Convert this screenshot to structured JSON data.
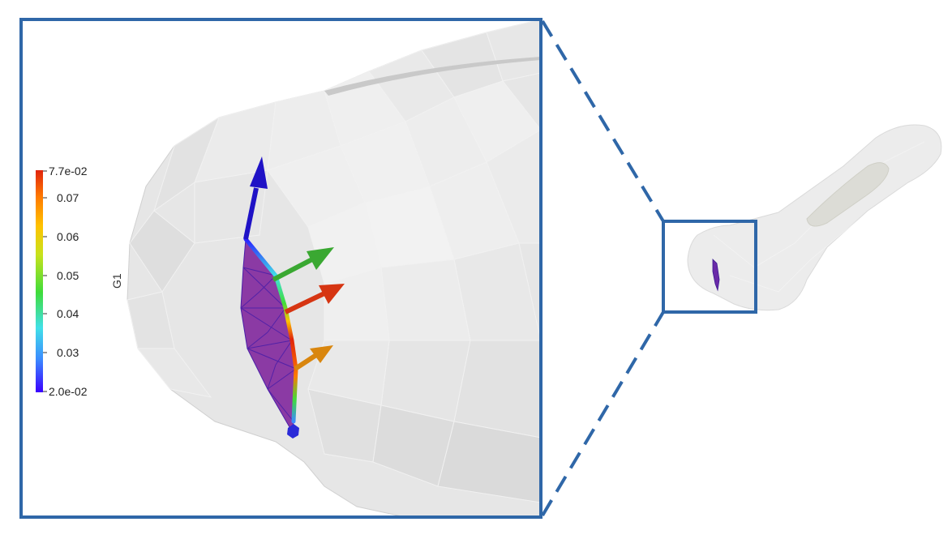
{
  "colorbar": {
    "title": "G1",
    "labels": [
      "7.7e-02",
      "0.07",
      "0.06",
      "0.05",
      "0.04",
      "0.03",
      "2.0e-02"
    ],
    "min": 0.02,
    "max": 0.077,
    "gradient": [
      "#3a00ff",
      "#3b8cff",
      "#41e0e8",
      "#3fdc3a",
      "#c8e21c",
      "#ffc200",
      "#ff7a00",
      "#e0240c"
    ]
  },
  "colors": {
    "frame": "#2f67a8",
    "surface": "#e9e9e9",
    "patch": "#8b3aa4",
    "patch_edges": "#4b1fa8"
  },
  "arrows": [
    {
      "name": "blue-arrow",
      "color": "#1f12c6"
    },
    {
      "name": "green-arrow",
      "color": "#3aa832"
    },
    {
      "name": "red-arrow",
      "color": "#d63512"
    },
    {
      "name": "orange-arrow",
      "color": "#d9860e"
    }
  ]
}
